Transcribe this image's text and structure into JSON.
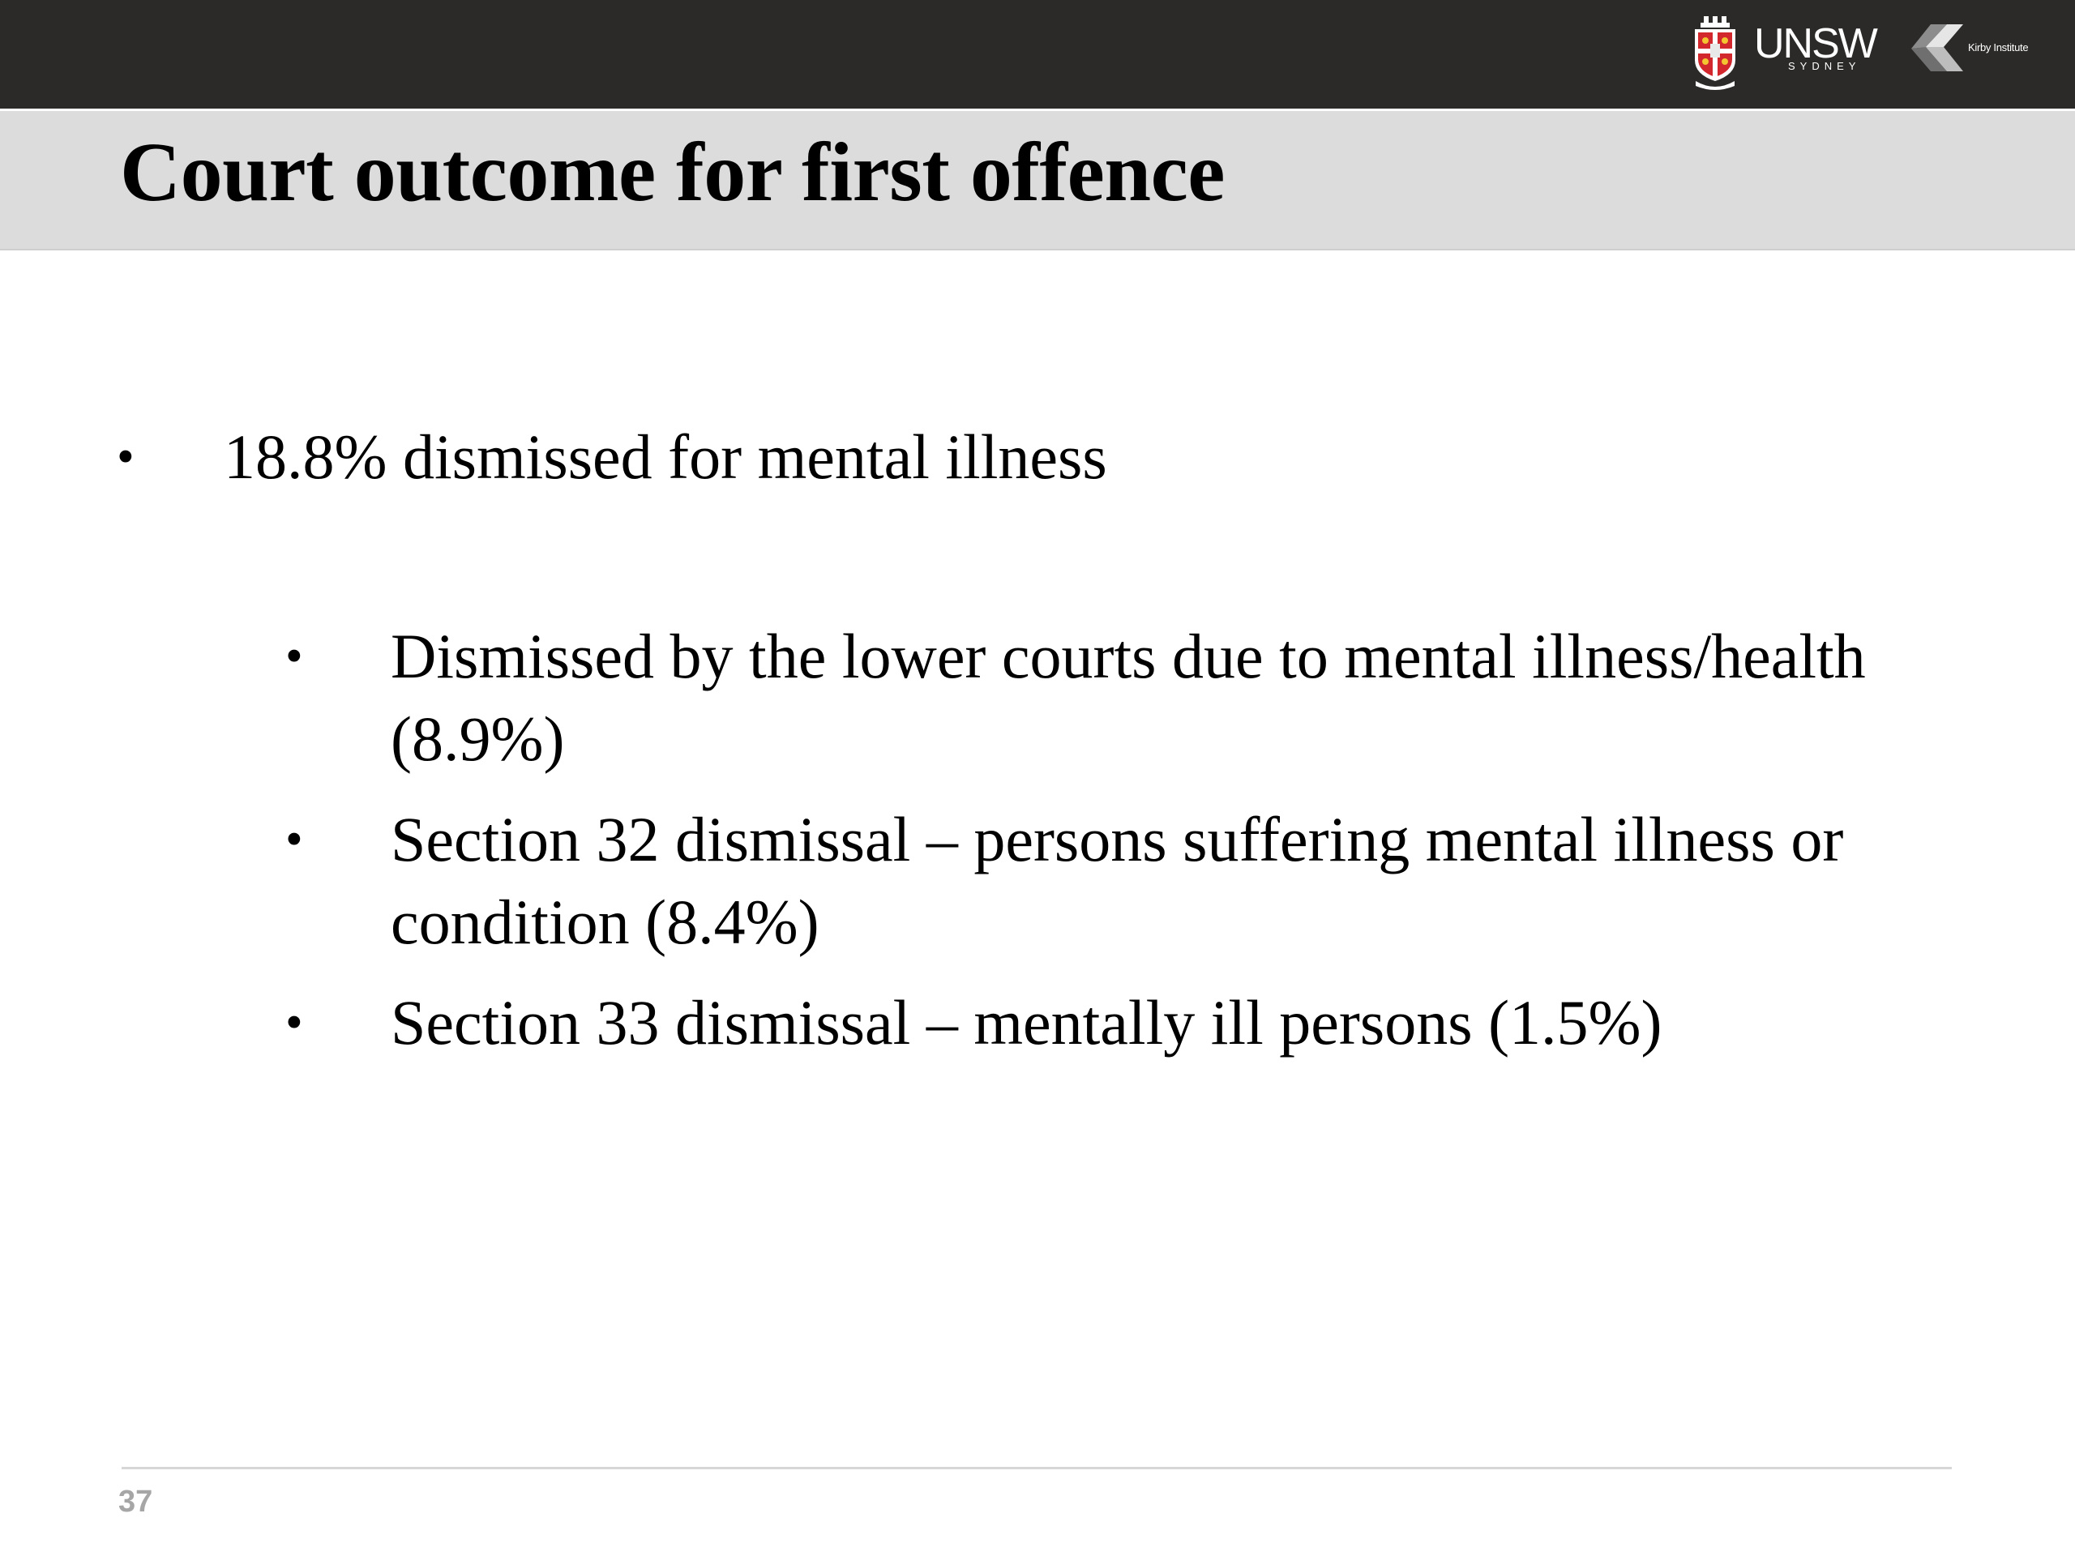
{
  "header": {
    "unsw_logo": {
      "name": "UNSW",
      "subtitle": "SYDNEY",
      "icon": "unsw-crest-icon"
    },
    "kirby_logo": {
      "name": "Kirby Institute",
      "icon": "kirby-k-icon"
    },
    "bar_color": "#2b2a28"
  },
  "slide": {
    "title": "Court outcome for first offence",
    "title_band_color": "#dcdcdc",
    "bullets": [
      {
        "text": "18.8% dismissed for mental illness",
        "sub_bullets": [
          {
            "text": "Dismissed by the lower courts due to mental illness/health (8.9%)"
          },
          {
            "text": "Section 32 dismissal – persons suffering mental illness or condition (8.4%)"
          },
          {
            "text": "Section 33 dismissal – mentally ill persons (1.5%)"
          }
        ]
      }
    ]
  },
  "footer": {
    "page_number": "37"
  }
}
